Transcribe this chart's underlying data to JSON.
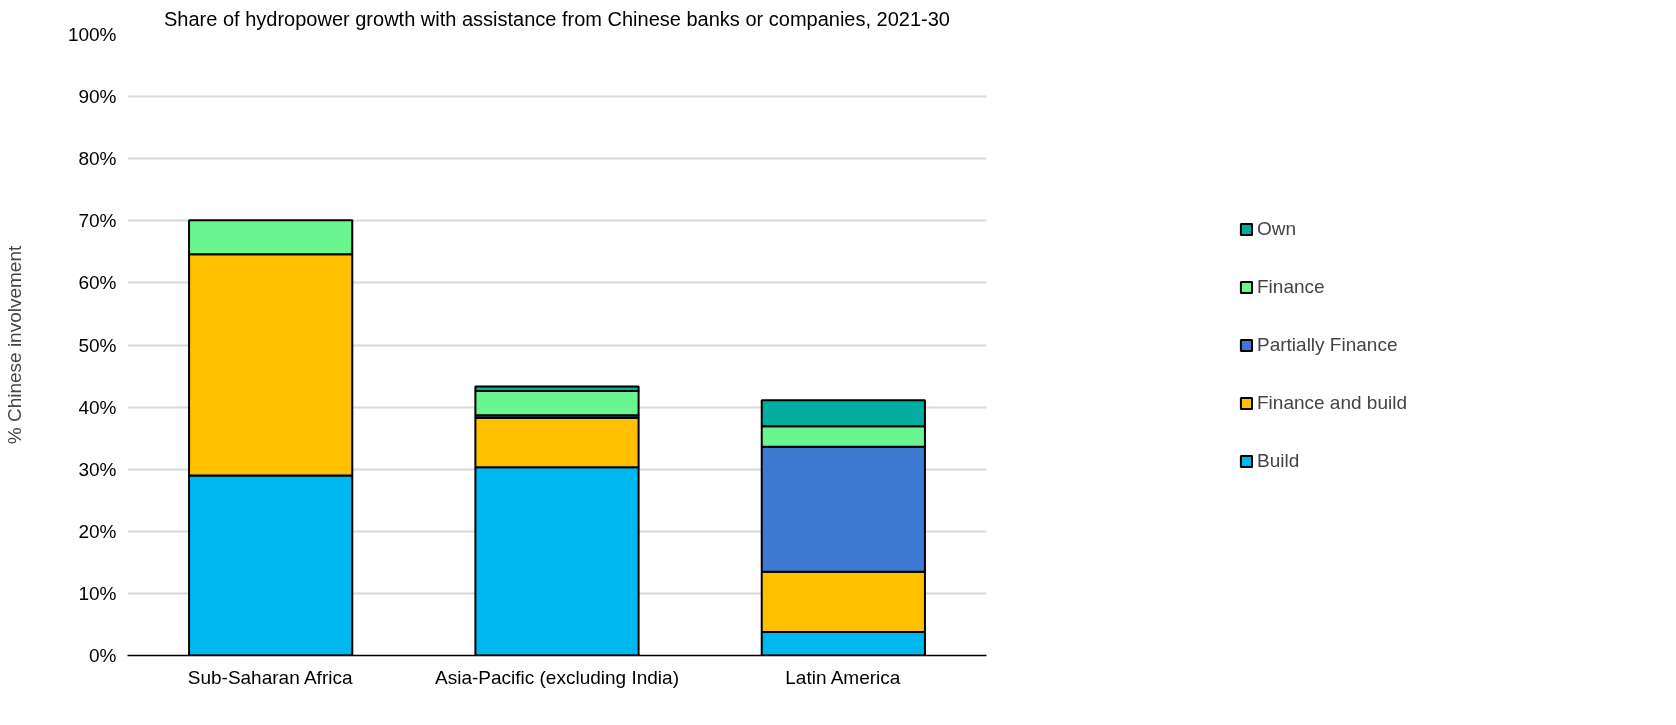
{
  "chart_data": {
    "type": "bar",
    "stacked": true,
    "title": "Share of hydropower growth with assistance from Chinese banks or companies, 2021-30",
    "ylabel": "% Chinese involvement",
    "categories": [
      "Sub-Saharan Africa",
      "Asia-Pacific (excluding India)",
      "Latin America"
    ],
    "series": [
      {
        "name": "Build",
        "color": "#00b8f0",
        "values": [
          29.0,
          30.3,
          3.8
        ]
      },
      {
        "name": "Finance and build",
        "color": "#ffc000",
        "values": [
          35.6,
          8.0,
          9.7
        ]
      },
      {
        "name": "Partially Finance",
        "color": "#3e7ad3",
        "values": [
          null,
          0.4,
          20.1
        ]
      },
      {
        "name": "Finance",
        "color": "#6bf590",
        "values": [
          5.5,
          3.9,
          3.3
        ]
      },
      {
        "name": "Own",
        "color": "#00ad9f",
        "values": [
          null,
          0.7,
          4.2
        ]
      }
    ],
    "ylim": [
      0,
      100
    ],
    "yticks": [
      {
        "value": 0,
        "label": "0%"
      },
      {
        "value": 10,
        "label": "10%"
      },
      {
        "value": 20,
        "label": "20%"
      },
      {
        "value": 30,
        "label": "30%"
      },
      {
        "value": 40,
        "label": "40%"
      },
      {
        "value": 50,
        "label": "50%"
      },
      {
        "value": 60,
        "label": "60%"
      },
      {
        "value": 70,
        "label": "70%"
      },
      {
        "value": 80,
        "label": "80%"
      },
      {
        "value": 90,
        "label": "90%"
      },
      {
        "value": 100,
        "label": "100%"
      }
    ],
    "grid": "y",
    "legend": "right"
  }
}
